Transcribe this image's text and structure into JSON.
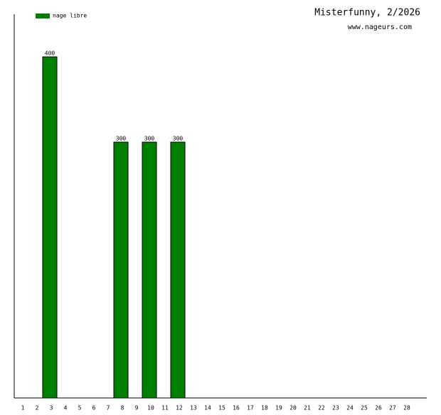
{
  "chart_data": {
    "type": "bar",
    "title": "Misterfunny, 2/2026",
    "subtitle": "www.nageurs.com",
    "categories": [
      "1",
      "2",
      "3",
      "4",
      "5",
      "6",
      "7",
      "8",
      "9",
      "10",
      "11",
      "12",
      "13",
      "14",
      "15",
      "16",
      "17",
      "18",
      "19",
      "20",
      "21",
      "22",
      "23",
      "24",
      "25",
      "26",
      "27",
      "28"
    ],
    "series": [
      {
        "name": "nage libre",
        "color": "#008000",
        "values": [
          null,
          null,
          400,
          null,
          null,
          null,
          null,
          300,
          null,
          300,
          null,
          300,
          null,
          null,
          null,
          null,
          null,
          null,
          null,
          null,
          null,
          null,
          null,
          null,
          null,
          null,
          null,
          null
        ]
      }
    ],
    "ylim": [
      0,
      450
    ],
    "legend": "top-left"
  }
}
